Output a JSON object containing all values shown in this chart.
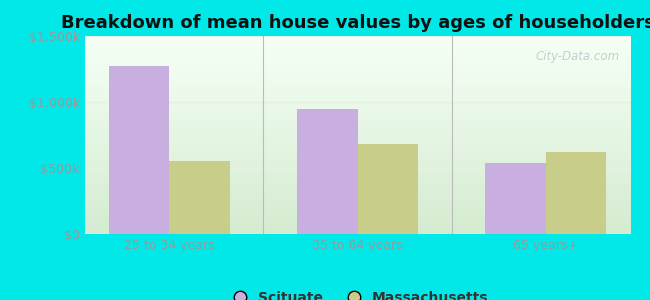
{
  "title": "Breakdown of mean house values by ages of householders",
  "categories": [
    "25 to 34 years",
    "35 to 64 years",
    "65 years+"
  ],
  "scituate_values": [
    1275000,
    950000,
    540000
  ],
  "massachusetts_values": [
    550000,
    680000,
    620000
  ],
  "scituate_color": "#c9aee0",
  "massachusetts_color": "#c8cd8a",
  "ylim": [
    0,
    1500000
  ],
  "yticks": [
    0,
    500000,
    1000000,
    1500000
  ],
  "ytick_labels": [
    "$0",
    "$500k",
    "$1,000k",
    "$1,500k"
  ],
  "background_outer": "#00e8e8",
  "grad_top": "#f5fff5",
  "grad_bottom": "#d4ebd0",
  "legend_scituate": "Scituate",
  "legend_massachusetts": "Massachusetts",
  "bar_width": 0.32,
  "watermark": "City-Data.com",
  "title_fontsize": 13,
  "axis_fontsize": 9,
  "tick_color": "#999999",
  "grid_color": "#e8f0e0",
  "divider_color": "#bbbbbb"
}
